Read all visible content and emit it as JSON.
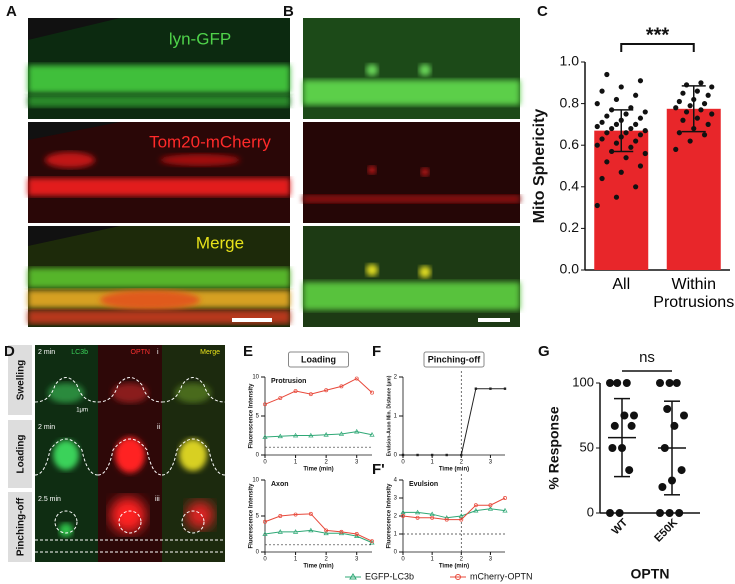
{
  "panels": {
    "letters": [
      "A",
      "B",
      "C",
      "D",
      "E",
      "F",
      "F'",
      "G"
    ],
    "a_labels": [
      "lyn-GFP",
      "Tom20-mCherry",
      "Merge"
    ],
    "d": {
      "rows": [
        "Swelling",
        "Loading",
        "Pinching-off"
      ],
      "channels": [
        "LC3b",
        "OPTN",
        "Merge"
      ],
      "times": [
        "2 min",
        "2 min",
        "2.5 min"
      ],
      "roman": [
        "i",
        "ii",
        "iii"
      ],
      "scale": "1μm"
    }
  },
  "chart_data": [
    {
      "type": "bar",
      "ylabel": "Mito Sphericity",
      "categories": [
        "All",
        "Within Protrusions"
      ],
      "values": [
        0.67,
        0.775
      ],
      "errors": [
        0.1,
        0.11
      ],
      "color": "#e8262a",
      "annotation": "***",
      "points": [
        [
          0.31,
          0.35,
          0.4,
          0.44,
          0.47,
          0.5,
          0.52,
          0.54,
          0.56,
          0.57,
          0.59,
          0.6,
          0.61,
          0.62,
          0.63,
          0.64,
          0.65,
          0.66,
          0.66,
          0.67,
          0.68,
          0.68,
          0.69,
          0.7,
          0.7,
          0.71,
          0.72,
          0.73,
          0.74,
          0.75,
          0.76,
          0.77,
          0.78,
          0.8,
          0.82,
          0.84,
          0.86,
          0.88,
          0.91,
          0.94
        ],
        [
          0.58,
          0.62,
          0.65,
          0.66,
          0.68,
          0.7,
          0.72,
          0.73,
          0.75,
          0.76,
          0.77,
          0.78,
          0.79,
          0.8,
          0.81,
          0.82,
          0.84,
          0.85,
          0.86,
          0.88,
          0.89,
          0.9
        ]
      ],
      "ylim": [
        0,
        1.0
      ],
      "yticks": [
        {
          "value": 0,
          "label": "0.0"
        },
        {
          "value": 0.2,
          "label": "0.2"
        },
        {
          "value": 0.4,
          "label": "0.4"
        },
        {
          "value": 0.6,
          "label": "0.6"
        },
        {
          "value": 0.8,
          "label": "0.8"
        },
        {
          "value": 1.0,
          "label": "1.0"
        }
      ]
    },
    {
      "type": "line",
      "header": "Loading",
      "title": "Protrusion",
      "ylabel": "Fluorescence Intensity",
      "xlabel": "Time (min)",
      "x": [
        0,
        0.5,
        1,
        1.5,
        2,
        2.5,
        3,
        3.5
      ],
      "xlim": [
        0,
        3.5
      ],
      "xticks": [
        0,
        1,
        2,
        3
      ],
      "ylim": [
        0,
        10
      ],
      "yticks": [
        0,
        5,
        10
      ],
      "hline": 1,
      "series": [
        {
          "name": "EGFP-LC3b",
          "color": "#2fa876",
          "marker": "triangle",
          "values": [
            2.3,
            2.4,
            2.5,
            2.5,
            2.6,
            2.7,
            3.0,
            2.6
          ]
        },
        {
          "name": "mCherry-OPTN",
          "color": "#e8483a",
          "marker": "circle",
          "values": [
            6.5,
            7.3,
            8.2,
            7.8,
            8.3,
            8.8,
            9.8,
            8.0
          ]
        }
      ]
    },
    {
      "type": "line",
      "title": "Axon",
      "ylabel": "Fluorescence Intensity",
      "xlabel": "Time (min)",
      "x": [
        0,
        0.5,
        1,
        1.5,
        2,
        2.5,
        3,
        3.5
      ],
      "xlim": [
        0,
        3.5
      ],
      "xticks": [
        0,
        1,
        2,
        3
      ],
      "ylim": [
        0,
        10
      ],
      "yticks": [
        0,
        5,
        10
      ],
      "hline": 1,
      "series": [
        {
          "color": "#2fa876",
          "marker": "triangle",
          "values": [
            2.5,
            2.8,
            2.8,
            3.0,
            2.6,
            2.6,
            2.2,
            1.3
          ]
        },
        {
          "color": "#e8483a",
          "marker": "circle",
          "values": [
            4.2,
            5.0,
            5.2,
            5.3,
            3.0,
            2.8,
            2.5,
            1.5
          ]
        }
      ]
    },
    {
      "type": "line",
      "header": "Pinching-off",
      "ylabel": "Evulsion-Axon Min. Distance (μm)",
      "xlabel": "Time (min)",
      "x": [
        0,
        0.5,
        1,
        1.5,
        2,
        2.5,
        3,
        3.5
      ],
      "xlim": [
        0,
        3.5
      ],
      "xticks": [
        0,
        1,
        2,
        3
      ],
      "ylim": [
        0,
        2
      ],
      "yticks": [
        0,
        1,
        2
      ],
      "vline": 2,
      "series": [
        {
          "color": "#222222",
          "marker": "square",
          "values": [
            0,
            0,
            0,
            0,
            0,
            1.7,
            1.7,
            1.7
          ]
        }
      ]
    },
    {
      "type": "line",
      "title": "Evulsion",
      "ylabel": "Fluorescence Intensity",
      "xlabel": "Time (min)",
      "x": [
        0,
        0.5,
        1,
        1.5,
        2,
        2.5,
        3,
        3.5
      ],
      "xlim": [
        0,
        3.5
      ],
      "xticks": [
        0,
        1,
        2,
        3
      ],
      "ylim": [
        0,
        4
      ],
      "yticks": [
        0,
        1,
        2,
        3,
        4
      ],
      "hline": 1,
      "vline": 2,
      "series": [
        {
          "color": "#2fa876",
          "marker": "triangle",
          "values": [
            2.2,
            2.2,
            2.1,
            1.9,
            2.0,
            2.3,
            2.4,
            2.3
          ]
        },
        {
          "color": "#e8483a",
          "marker": "circle",
          "values": [
            2.0,
            1.9,
            1.9,
            1.8,
            1.8,
            2.6,
            2.6,
            3.0
          ]
        }
      ]
    },
    {
      "type": "dot",
      "ylabel": "% Response",
      "xlabel": "OPTN",
      "annotation": "ns",
      "categories": [
        "WT",
        "E50K"
      ],
      "values": [
        58,
        50
      ],
      "errors": [
        30,
        36
      ],
      "points": [
        [
          0,
          0,
          33,
          50,
          50,
          67,
          67,
          75,
          75,
          100,
          100,
          100
        ],
        [
          0,
          0,
          0,
          20,
          25,
          33,
          50,
          67,
          75,
          80,
          100,
          100,
          100
        ]
      ],
      "ylim": [
        0,
        100
      ],
      "yticks": [
        0,
        50,
        100
      ]
    }
  ]
}
